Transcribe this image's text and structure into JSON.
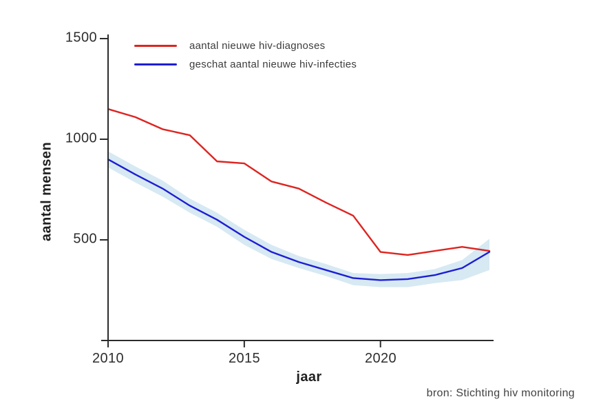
{
  "chart_data": {
    "type": "line",
    "title": "",
    "xlabel": "jaar",
    "ylabel": "aantal mensen",
    "x": [
      2010,
      2011,
      2012,
      2013,
      2014,
      2015,
      2016,
      2017,
      2018,
      2019,
      2020,
      2021,
      2022,
      2023,
      2024
    ],
    "series": [
      {
        "name": "aantal nieuwe hiv-diagnoses",
        "color": "#dd2420",
        "values": [
          1150,
          1110,
          1050,
          1020,
          890,
          880,
          790,
          755,
          685,
          620,
          440,
          425,
          445,
          465,
          445
        ]
      },
      {
        "name": "geschat aantal nieuwe hiv-infecties",
        "color": "#1d1dd3",
        "values": [
          900,
          825,
          755,
          670,
          600,
          515,
          440,
          390,
          350,
          310,
          300,
          305,
          325,
          360,
          440
        ],
        "band": {
          "color": "#d7e9f3",
          "lower": [
            860,
            785,
            715,
            635,
            565,
            475,
            405,
            360,
            320,
            275,
            265,
            265,
            285,
            300,
            350
          ],
          "upper": [
            940,
            865,
            795,
            705,
            635,
            550,
            475,
            420,
            380,
            335,
            330,
            335,
            355,
            400,
            505
          ]
        }
      }
    ],
    "xticks": [
      "2010",
      "2015",
      "2020"
    ],
    "yticks": [
      "500",
      "1000",
      "1500"
    ],
    "xlim": [
      2010,
      2024.15
    ],
    "ylim": [
      0,
      1540
    ],
    "grid": false,
    "legend_position": "top-left-inside"
  },
  "source_note": "bron: Stichting hiv monitoring",
  "colors": {
    "axis": "#2b2b2b",
    "diagnoses_line": "#dd2420",
    "infections_line": "#1d1dd3",
    "confidence_band": "#d7e9f3",
    "background": "#ffffff"
  }
}
